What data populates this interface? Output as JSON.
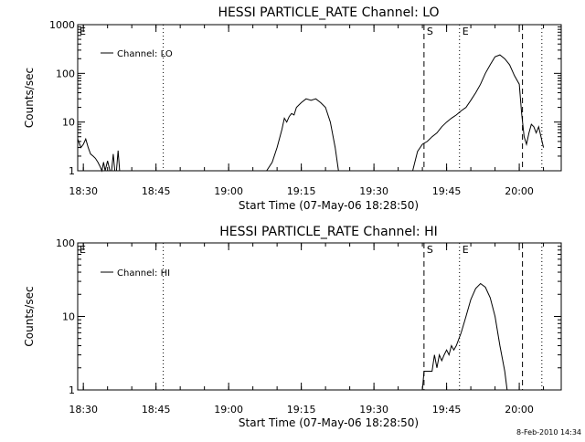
{
  "timestamp": "8-Feb-2010 14:34",
  "chart_data": [
    {
      "type": "line",
      "title": "HESSI PARTICLE_RATE Channel: LO",
      "xlabel": "Start Time (07-May-06 18:28:50)",
      "ylabel": "Counts/sec",
      "xlim": [
        "18:28:50",
        "20:08:40"
      ],
      "ylim": [
        1,
        1000
      ],
      "yscale": "log",
      "x_ticks": [
        "18:30",
        "18:45",
        "19:00",
        "19:15",
        "19:30",
        "19:45",
        "20:00"
      ],
      "y_ticks": [
        "1",
        "10",
        "100",
        "1000"
      ],
      "legend": "top-left",
      "series": [
        {
          "name": "Channel: LO",
          "color": "#000000",
          "segments": [
            {
              "x": [
                "18:28:50",
                "18:29:30",
                "18:30:00",
                "18:30:30",
                "18:31:00",
                "18:31:30",
                "18:32:00",
                "18:32:30",
                "18:33:00",
                "18:33:30",
                "18:33:50",
                "18:34:10",
                "18:34:30",
                "18:35:00",
                "18:35:30",
                "18:35:50",
                "18:36:10",
                "18:36:30",
                "18:36:50",
                "18:37:10",
                "18:37:30",
                "18:37:50",
                "18:38:10"
              ],
              "y": [
                4.5,
                3.0,
                3.5,
                4.5,
                3.0,
                2.2,
                2.0,
                1.8,
                1.5,
                1.2,
                1.0,
                1.5,
                1.0,
                1.6,
                1.0,
                1.0,
                2.2,
                1.0,
                1.0,
                2.6,
                1.0,
                1.0,
                1.0
              ]
            },
            {
              "x": [
                "19:07:50",
                "19:09:00",
                "19:10:00",
                "19:11:00",
                "19:11:30",
                "19:12:00",
                "19:12:30",
                "19:13:00",
                "19:13:30",
                "19:14:00",
                "19:15:00",
                "19:16:00",
                "19:17:00",
                "19:18:00",
                "19:19:00",
                "19:20:00",
                "19:21:00",
                "19:22:00",
                "19:22:40"
              ],
              "y": [
                1.0,
                1.5,
                3.0,
                7.0,
                12.0,
                10.0,
                13.0,
                15.0,
                14.0,
                20.0,
                25.0,
                30.0,
                28.0,
                30.0,
                25.0,
                20.0,
                10.0,
                3.0,
                1.0
              ]
            },
            {
              "x": [
                "19:38:00",
                "19:39:00",
                "19:40:00",
                "19:41:00",
                "19:42:00",
                "19:43:00",
                "19:44:00",
                "19:45:00",
                "19:46:00",
                "19:47:00",
                "19:48:00",
                "19:49:00",
                "19:50:00",
                "19:51:00",
                "19:52:00",
                "19:53:00",
                "19:54:00",
                "19:55:00",
                "19:56:00",
                "19:57:00",
                "19:58:00",
                "19:59:00",
                "20:00:00",
                "20:00:30",
                "20:01:00",
                "20:01:30",
                "20:02:00",
                "20:02:30",
                "20:03:00",
                "20:03:30",
                "20:04:00",
                "20:05:00"
              ],
              "y": [
                1.0,
                2.5,
                3.5,
                4.0,
                5.0,
                6.0,
                8.0,
                10.0,
                12.0,
                14.0,
                17.0,
                20.0,
                28.0,
                40.0,
                60.0,
                100.0,
                150.0,
                220.0,
                240.0,
                200.0,
                150.0,
                90.0,
                60.0,
                15.0,
                5.0,
                3.5,
                6.0,
                9.0,
                8.0,
                6.0,
                8.0,
                3.0
              ]
            }
          ]
        }
      ],
      "vertical_lines": [
        {
          "x": "18:46:30",
          "style": "dotted"
        },
        {
          "x": "19:40:20",
          "style": "dashed",
          "label": "S"
        },
        {
          "x": "19:47:40",
          "style": "dotted",
          "label": "E"
        },
        {
          "x": "20:00:40",
          "style": "dashed"
        },
        {
          "x": "20:04:40",
          "style": "dotted"
        }
      ],
      "corner_marker": "E"
    },
    {
      "type": "line",
      "title": "HESSI PARTICLE_RATE Channel: HI",
      "xlabel": "Start Time (07-May-06 18:28:50)",
      "ylabel": "Counts/sec",
      "xlim": [
        "18:28:50",
        "20:08:40"
      ],
      "ylim": [
        1,
        100
      ],
      "yscale": "log",
      "x_ticks": [
        "18:30",
        "18:45",
        "19:00",
        "19:15",
        "19:30",
        "19:45",
        "20:00"
      ],
      "y_ticks": [
        "1",
        "10",
        "100"
      ],
      "legend": "top-left",
      "series": [
        {
          "name": "Channel: HI",
          "color": "#000000",
          "segments": [
            {
              "x": [
                "19:40:00",
                "19:40:20",
                "19:41:00",
                "19:42:00",
                "19:42:30",
                "19:43:00",
                "19:43:30",
                "19:44:00",
                "19:44:30",
                "19:45:00",
                "19:45:30",
                "19:46:00",
                "19:46:30",
                "19:47:00",
                "19:48:00",
                "19:49:00",
                "19:50:00",
                "19:51:00",
                "19:52:00",
                "19:53:00",
                "19:54:00",
                "19:55:00",
                "19:56:00",
                "19:57:00",
                "19:57:30"
              ],
              "y": [
                1.0,
                1.8,
                1.8,
                1.8,
                3.0,
                2.0,
                3.0,
                2.5,
                3.0,
                3.5,
                3.0,
                4.0,
                3.5,
                4.0,
                6.0,
                10.0,
                17.0,
                24.0,
                28.0,
                25.0,
                18.0,
                10.0,
                4.0,
                1.8,
                1.0
              ]
            }
          ]
        }
      ],
      "vertical_lines": [
        {
          "x": "18:46:30",
          "style": "dotted"
        },
        {
          "x": "19:40:20",
          "style": "dashed",
          "label": "S"
        },
        {
          "x": "19:47:40",
          "style": "dotted",
          "label": "E"
        },
        {
          "x": "20:00:40",
          "style": "dashed"
        },
        {
          "x": "20:04:40",
          "style": "dotted"
        }
      ],
      "corner_marker": "E"
    }
  ]
}
